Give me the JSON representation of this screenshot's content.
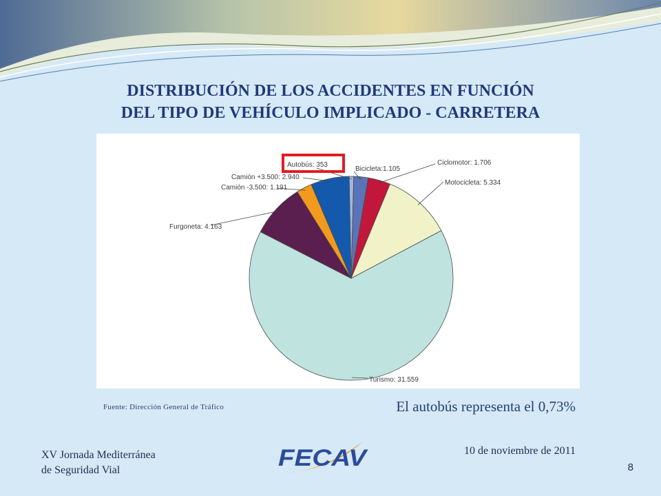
{
  "slide": {
    "title_line1": "DISTRIBUCIÓN DE LOS ACCIDENTES EN FUNCIÓN",
    "title_line2": "DEL TIPO DE VEHÍCULO IMPLICADO - CARRETERA",
    "source": "Fuente: Dirección General de Tráfico",
    "conclusion": "El autobús representa el 0,73%",
    "event_line1": "XV Jornada Mediterránea",
    "event_line2": "de Seguridad Vial",
    "date": "10 de noviembre de 2011",
    "page_number": "8",
    "logo_text": "FECAV"
  },
  "colors": {
    "background": "#d6e9f6",
    "title": "#1f3a7a",
    "highlight_box": "#e31b23",
    "logo_blue": "#2b4b9b",
    "logo_orange": "#f39a1e"
  },
  "chart_data": {
    "type": "pie",
    "title": "",
    "highlighted": "Autobús",
    "slices": [
      {
        "name": "Autobús",
        "value": 353,
        "label": "Autobús: 353",
        "color": "#9fb7dc"
      },
      {
        "name": "Bicicleta",
        "value": 1105,
        "label": "Bicicleta:1.105",
        "color": "#5b73b8"
      },
      {
        "name": "Ciclomotor",
        "value": 1706,
        "label": "Ciclomotor: 1.706",
        "color": "#c2173a"
      },
      {
        "name": "Motocicleta",
        "value": 5334,
        "label": "Motocicleta: 5.334",
        "color": "#f2f2c8"
      },
      {
        "name": "Turismo",
        "value": 31559,
        "label": "Turismo: 31.559",
        "color": "#bfe3df"
      },
      {
        "name": "Furgoneta",
        "value": 4163,
        "label": "Furgoneta: 4.163",
        "color": "#5a1f4f"
      },
      {
        "name": "Camión -3.500",
        "value": 1191,
        "label": "Camión -3.500: 1.191",
        "color": "#f39a1e"
      },
      {
        "name": "Camión +3.500",
        "value": 2940,
        "label": "Camión +3.500: 2.940",
        "color": "#1559ad"
      }
    ]
  }
}
